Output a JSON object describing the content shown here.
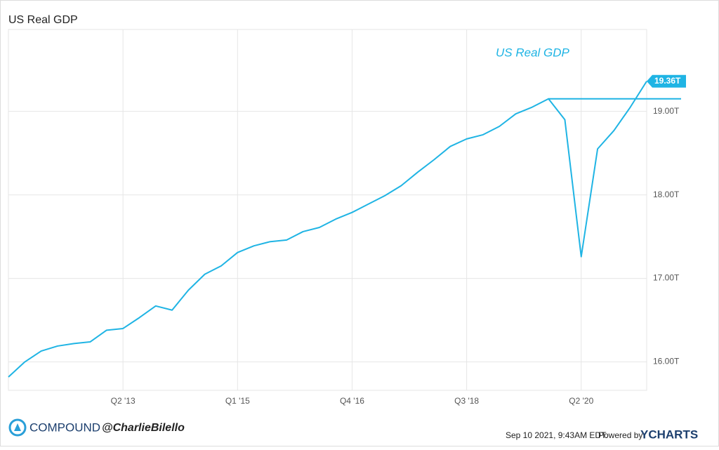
{
  "chart_data": {
    "type": "line",
    "title": "US Real GDP",
    "annotation": "US Real GDP",
    "categories": [
      null,
      null,
      null,
      null,
      null,
      null,
      null,
      "Q2 '13",
      null,
      null,
      null,
      null,
      null,
      null,
      "Q1 '15",
      null,
      null,
      null,
      null,
      null,
      null,
      "Q4 '16",
      null,
      null,
      null,
      null,
      null,
      null,
      "Q3 '18",
      null,
      null,
      null,
      null,
      null,
      null,
      "Q2 '20",
      null,
      null,
      null,
      null
    ],
    "series": [
      {
        "name": "US Real GDP",
        "color": "#1fb4e4",
        "values": [
          15.82,
          16.0,
          16.13,
          16.19,
          16.22,
          16.24,
          16.38,
          16.4,
          16.53,
          16.67,
          16.62,
          16.86,
          17.05,
          17.15,
          17.31,
          17.39,
          17.44,
          17.46,
          17.56,
          17.61,
          17.71,
          17.79,
          17.89,
          17.99,
          18.11,
          18.27,
          18.42,
          18.58,
          18.67,
          18.72,
          18.82,
          18.97,
          19.05,
          19.15,
          18.9,
          17.26,
          18.55,
          18.77,
          19.05,
          19.36
        ],
        "value_labels": [
          null,
          null,
          null,
          null,
          null,
          null,
          null,
          null,
          null,
          null,
          null,
          null,
          null,
          null,
          null,
          null,
          null,
          null,
          null,
          null,
          null,
          null,
          null,
          null,
          null,
          null,
          null,
          null,
          null,
          null,
          null,
          null,
          null,
          null,
          null,
          null,
          null,
          null,
          null,
          "19.36T"
        ]
      }
    ],
    "reference_line": 19.15,
    "ylim": [
      15.66,
      19.98
    ],
    "yticks": [
      {
        "value": 16,
        "label": "16.00T"
      },
      {
        "value": 17,
        "label": "17.00T"
      },
      {
        "value": 18,
        "label": "18.00T"
      },
      {
        "value": 19,
        "label": "19.00T"
      }
    ],
    "grid": true,
    "footer": {
      "brand": "COMPOUND",
      "handle": "@CharlieBilello",
      "timestamp": "Sep 10 2021, 9:43AM EDT.",
      "powered": "Powered by",
      "provider": "YCHARTS"
    }
  }
}
